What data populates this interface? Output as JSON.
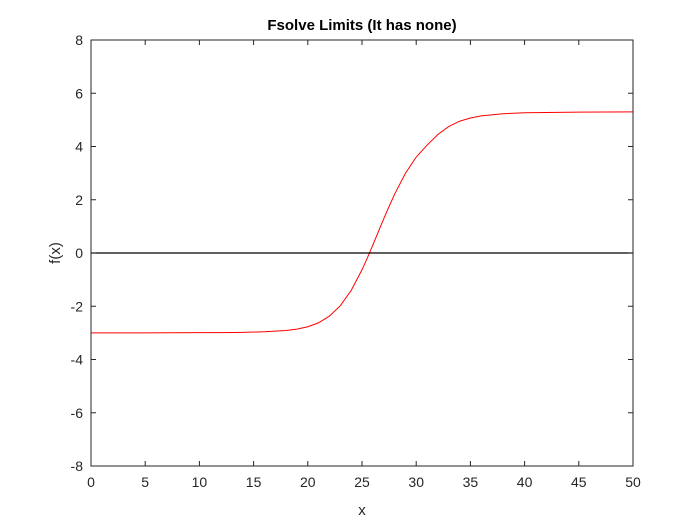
{
  "chart_data": {
    "type": "line",
    "title": "Fsolve Limits (It has none)",
    "xlabel": "x",
    "ylabel": "f(x)",
    "xlim": [
      0,
      50
    ],
    "ylim": [
      -8,
      8
    ],
    "xticks": [
      0,
      5,
      10,
      15,
      20,
      25,
      30,
      35,
      40,
      45,
      50
    ],
    "yticks": [
      -8,
      -6,
      -4,
      -2,
      0,
      2,
      4,
      6,
      8
    ],
    "grid": false,
    "legend": "none",
    "series": [
      {
        "color": "#ff0000",
        "x": [
          0,
          5,
          10,
          12,
          14,
          16,
          18,
          19,
          20,
          21,
          22,
          23,
          24,
          25,
          25.5,
          26,
          26.5,
          27,
          27.5,
          28,
          29,
          30,
          31,
          32,
          33,
          34,
          35,
          36,
          38,
          40,
          45,
          50
        ],
        "y": [
          -3.0,
          -3.0,
          -2.99,
          -2.99,
          -2.98,
          -2.96,
          -2.91,
          -2.86,
          -2.77,
          -2.62,
          -2.37,
          -1.98,
          -1.41,
          -0.63,
          -0.18,
          0.3,
          0.79,
          1.28,
          1.75,
          2.2,
          2.99,
          3.6,
          4.05,
          4.45,
          4.75,
          4.95,
          5.07,
          5.15,
          5.23,
          5.27,
          5.29,
          5.3
        ]
      },
      {
        "color": "#000000",
        "x": [
          0,
          50
        ],
        "y": [
          0,
          0
        ]
      }
    ]
  }
}
